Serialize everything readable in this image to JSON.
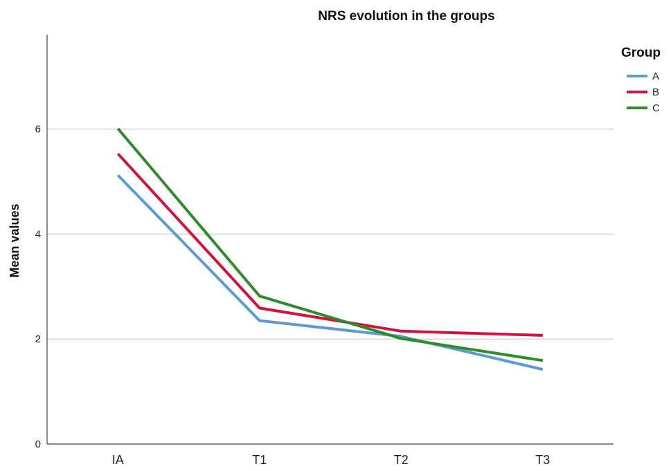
{
  "chart_data": {
    "type": "line",
    "title": "NRS evolution in the groups",
    "xlabel": "",
    "ylabel": "Mean values",
    "categories": [
      "IA",
      "T1",
      "T2",
      "T3"
    ],
    "yticks": [
      0,
      2,
      4,
      6
    ],
    "ylim": [
      0,
      7.8
    ],
    "grid": true,
    "legend": {
      "title": "Group",
      "position": "top-right"
    },
    "series": [
      {
        "name": "A",
        "color": "#5b9bd5",
        "values": [
          5.12,
          2.35,
          2.05,
          1.42
        ]
      },
      {
        "name": "B",
        "color": "#d2123a",
        "values": [
          5.53,
          2.59,
          2.15,
          2.07
        ]
      },
      {
        "name": "C",
        "color": "#2e8b2a",
        "values": [
          6.01,
          2.82,
          2.01,
          1.59
        ]
      }
    ]
  }
}
